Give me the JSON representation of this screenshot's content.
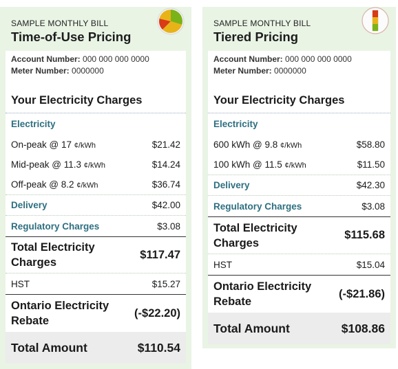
{
  "tou": {
    "sample_label": "SAMPLE MONTHLY BILL",
    "plan_title": "Time-of-Use Pricing",
    "account_label": "Account Number:",
    "account_value": "000 000 000 0000",
    "meter_label": "Meter Number:",
    "meter_value": "0000000",
    "charges_title": "Your Electricity Charges",
    "electricity_label": "Electricity",
    "lines": [
      {
        "label": "On-peak @ 17",
        "unit": "¢/kWh",
        "value": "$21.42"
      },
      {
        "label": "Mid-peak @ 11.3",
        "unit": "¢/kWh",
        "value": "$14.24"
      },
      {
        "label": "Off-peak @ 8.2",
        "unit": "¢/kWh",
        "value": "$36.74"
      }
    ],
    "delivery_label": "Delivery",
    "delivery_value": "$42.00",
    "regulatory_label": "Regulatory Charges",
    "regulatory_value": "$3.08",
    "total_charges_label_1": "Total Electricity",
    "total_charges_label_2": "Charges",
    "total_charges_value": "$117.47",
    "hst_label": "HST",
    "hst_value": "$15.27",
    "rebate_label_1": "Ontario Electricity",
    "rebate_label_2": "Rebate",
    "rebate_value": "(-$22.20)",
    "total_amount_label": "Total Amount",
    "total_amount_value": "$110.54",
    "icon": "time-of-use-pie-icon",
    "icon_colors": [
      "#e8b317",
      "#d83b15",
      "#7ab317"
    ]
  },
  "tier": {
    "sample_label": "SAMPLE MONTHLY BILL",
    "plan_title": "Tiered Pricing",
    "account_label": "Account Number:",
    "account_value": "000 000 000 0000",
    "meter_label": "Meter Number:",
    "meter_value": "0000000",
    "charges_title": "Your Electricity Charges",
    "electricity_label": "Electricity",
    "lines": [
      {
        "label": "600 kWh @ 9.8",
        "unit": "¢/kWh",
        "value": "$58.80"
      },
      {
        "label": "100 kWh @ 11.5",
        "unit": "¢/kWh",
        "value": "$11.50"
      }
    ],
    "delivery_label": "Delivery",
    "delivery_value": "$42.30",
    "regulatory_label": "Regulatory Charges",
    "regulatory_value": "$3.08",
    "total_charges_label_1": "Total Electricity",
    "total_charges_label_2": "Charges",
    "total_charges_value": "$115.68",
    "hst_label": "HST",
    "hst_value": "$15.04",
    "rebate_label_1": "Ontario Electricity",
    "rebate_label_2": "Rebate",
    "rebate_value": "(-$21.86)",
    "total_amount_label": "Total Amount",
    "total_amount_value": "$108.86",
    "icon": "tiered-pricing-icon",
    "icon_colors": [
      "#d83b15",
      "#e8b317",
      "#7ab317"
    ]
  }
}
